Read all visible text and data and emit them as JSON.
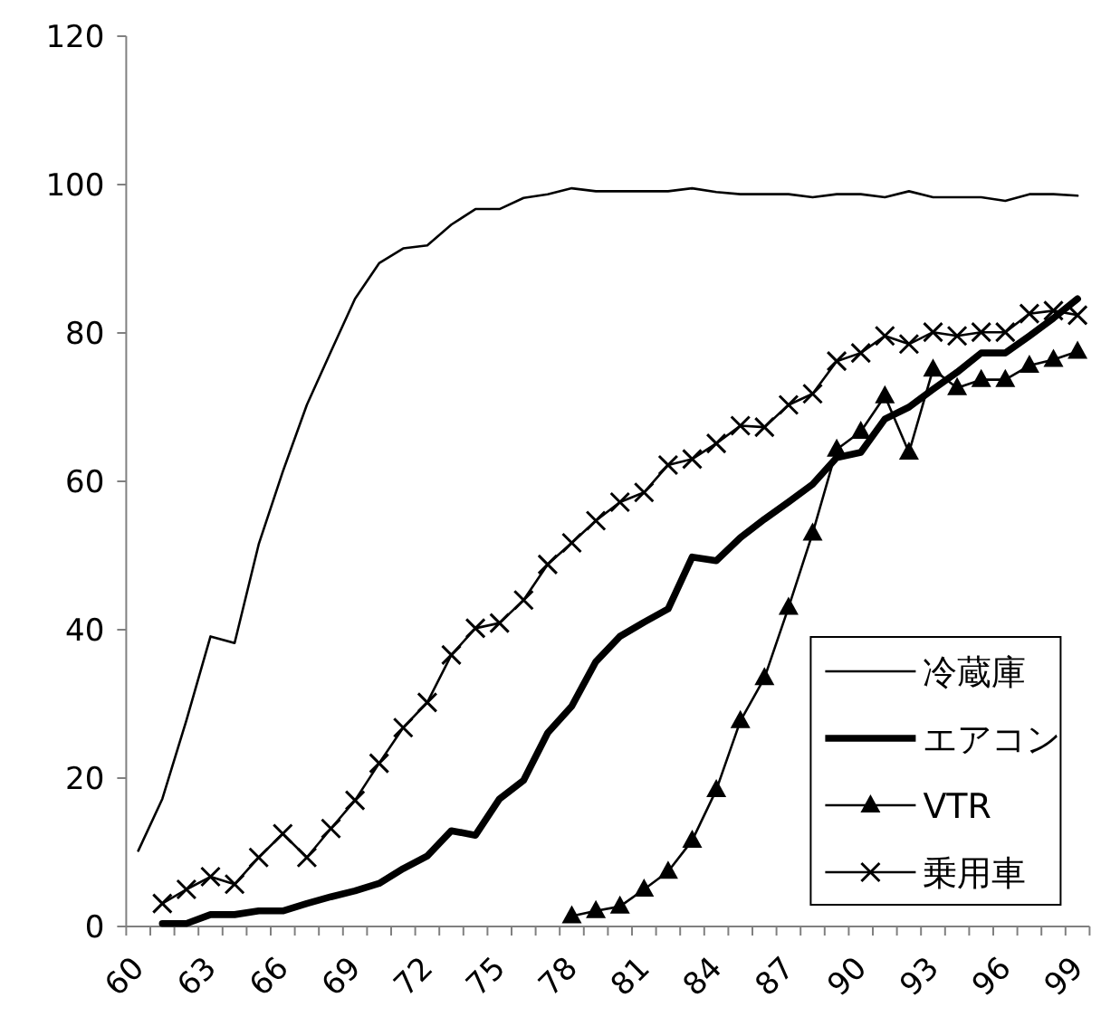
{
  "chart_data": {
    "type": "line",
    "categories": [
      "60",
      null,
      null,
      "63",
      null,
      null,
      "66",
      null,
      null,
      "69",
      null,
      null,
      "72",
      null,
      null,
      "75",
      null,
      null,
      "78",
      null,
      null,
      "81",
      null,
      null,
      "84",
      null,
      null,
      "87",
      null,
      null,
      "90",
      null,
      null,
      "93",
      null,
      null,
      "96",
      null,
      null,
      "99"
    ],
    "series": [
      {
        "name": "冷蔵庫",
        "color": "#000000",
        "marker": "none",
        "values": [
          10.2,
          17.2,
          27.8,
          39.1,
          38.2,
          51.5,
          61.3,
          70.3,
          77.5,
          84.6,
          89.4,
          91.4,
          91.8,
          94.6,
          96.7,
          96.7,
          98.2,
          98.7,
          99.5,
          99.1,
          99.1,
          99.1,
          99.1,
          99.5,
          99.0,
          98.7,
          98.7,
          98.7,
          98.3,
          98.7,
          98.7,
          98.3,
          99.1,
          98.3,
          98.3,
          98.3,
          97.8,
          98.7,
          98.7,
          98.5
        ]
      },
      {
        "name": "エアコン",
        "color": "#000000",
        "marker": "none",
        "values": [
          null,
          0.4,
          0.4,
          1.6,
          1.6,
          2.1,
          2.1,
          3.1,
          4.0,
          4.8,
          5.8,
          7.8,
          9.5,
          12.9,
          12.3,
          17.2,
          19.7,
          26.1,
          29.7,
          35.7,
          39.1,
          41.0,
          42.8,
          49.8,
          49.3,
          52.4,
          54.9,
          57.2,
          59.6,
          63.2,
          63.9,
          68.4,
          70.0,
          72.4,
          74.7,
          77.3,
          77.3,
          79.6,
          82.0,
          84.6
        ]
      },
      {
        "name": "VTR",
        "color": "#000000",
        "marker": "triangle",
        "values": [
          null,
          null,
          null,
          null,
          null,
          null,
          null,
          null,
          null,
          null,
          null,
          null,
          null,
          null,
          null,
          null,
          null,
          null,
          1.4,
          2.1,
          2.7,
          5.0,
          7.4,
          11.6,
          18.4,
          27.7,
          33.5,
          43.0,
          53.0,
          64.3,
          66.7,
          71.5,
          63.9,
          75.1,
          72.6,
          73.7,
          73.7,
          75.6,
          76.4,
          77.5
        ]
      },
      {
        "name": "乗用車",
        "color": "#000000",
        "marker": "cross",
        "values": [
          null,
          3.1,
          5.0,
          6.7,
          5.7,
          9.3,
          12.5,
          9.3,
          13.2,
          17.0,
          22.0,
          26.8,
          30.2,
          36.6,
          40.2,
          40.9,
          44.0,
          48.8,
          51.7,
          54.7,
          57.2,
          58.5,
          62.2,
          63.0,
          65.1,
          67.5,
          67.3,
          70.3,
          71.8,
          76.2,
          77.3,
          79.6,
          78.5,
          80.1,
          79.6,
          80.1,
          80.1,
          82.6,
          83.0,
          82.4
        ]
      }
    ],
    "ylim": [
      0,
      120
    ],
    "yticks": [
      0,
      20,
      40,
      60,
      80,
      100,
      120
    ],
    "grid": false,
    "legend": "bottom right"
  }
}
